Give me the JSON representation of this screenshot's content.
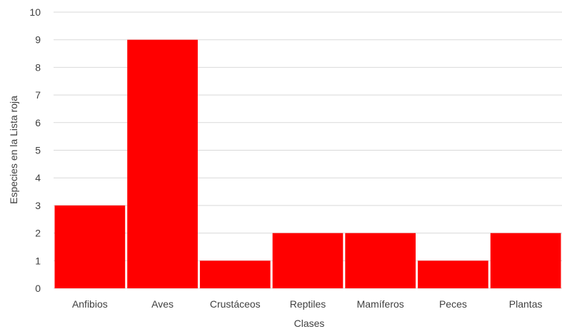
{
  "chart_data": {
    "type": "bar",
    "title": "",
    "xlabel": "Clases",
    "ylabel": "Especies en la Lista roja",
    "ylim": [
      0,
      10
    ],
    "yticks": [
      "0",
      "1",
      "2",
      "3",
      "4",
      "5",
      "6",
      "7",
      "8",
      "9",
      "10"
    ],
    "grid": true,
    "categories": [
      "Anfibios",
      "Aves",
      "Crustáceos",
      "Reptiles",
      "Mamíferos",
      "Peces",
      "Plantas"
    ],
    "values": [
      3,
      9,
      1,
      2,
      2,
      1,
      2
    ],
    "bar_color": "#ff0000"
  }
}
